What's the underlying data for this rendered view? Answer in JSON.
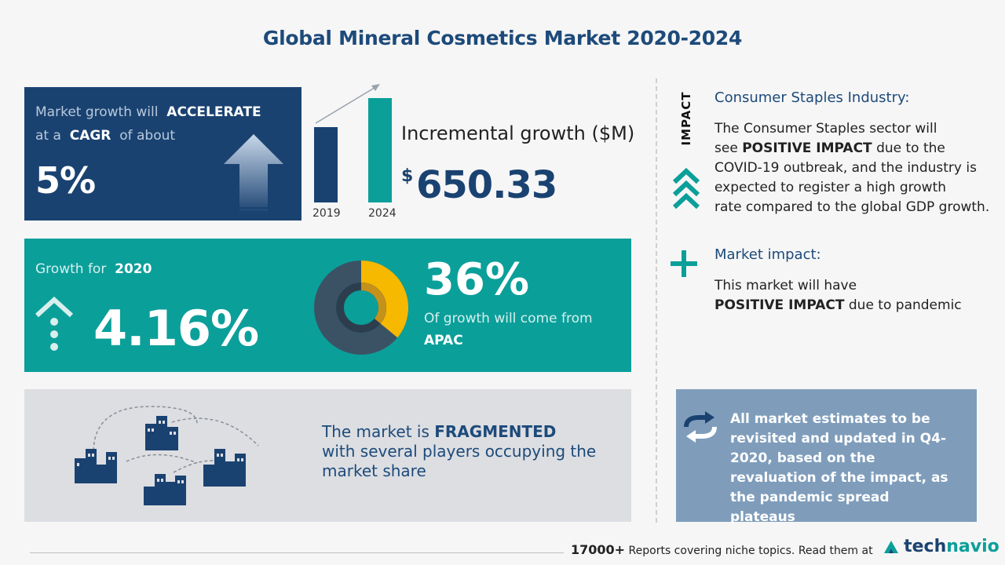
{
  "title": "Global Mineral Cosmetics Market 2020-2024",
  "cagr": {
    "line1_prefix": "Market growth will",
    "line1_emphasis": "ACCELERATE",
    "line2_prefix": "at a",
    "line2_emphasis": "CAGR",
    "line2_suffix": "of about",
    "value": "5%",
    "icon": "up-arrow-icon"
  },
  "incremental": {
    "label": "Incremental growth ($M)",
    "currency": "$",
    "value": "650.33",
    "years": [
      "2019",
      "2024"
    ],
    "bar_colors": [
      "#1a4271",
      "#0b9f9a"
    ]
  },
  "growth": {
    "label_prefix": "Growth for",
    "year": "2020",
    "value": "4.16%",
    "icon": "dotted-up-arrow-icon"
  },
  "region": {
    "percent": "36%",
    "text": "Of growth will come from",
    "name": "APAC",
    "share": 0.36,
    "highlight_color": "#f7b800"
  },
  "fragmented": {
    "prefix": "The market is",
    "emphasis": "FRAGMENTED",
    "line2": "with several players occupying the",
    "line3": "market share",
    "icon": "buildings-network-icon"
  },
  "impact": {
    "vertical_label": "IMPACT",
    "industry_title": "Consumer Staples Industry:",
    "industry_line1": "The Consumer Staples sector will",
    "industry_line2_prefix": "see",
    "industry_line2_emphasis": "POSITIVE IMPACT",
    "industry_line2_suffix": "due to the",
    "industry_line3": "COVID-19 outbreak, and the industry is",
    "industry_line4": "expected to register a high growth",
    "industry_line5": "rate compared to the global GDP growth.",
    "market_title": "Market impact:",
    "market_line1": "This market will have",
    "market_emphasis": "POSITIVE IMPACT",
    "market_suffix": "due to pandemic",
    "chevron_icon": "chevrons-up-icon",
    "plus_icon": "plus-icon"
  },
  "note": {
    "icon": "refresh-arrows-icon",
    "text": "All market estimates to be revisited and updated in Q4-2020, based on the revaluation of the impact, as the pandemic spread plateaus"
  },
  "footer": {
    "count": "17000+",
    "text": "Reports covering niche topics. Read them at",
    "brand_part1": "tech",
    "brand_part2": "navio"
  },
  "colors": {
    "navy": "#1a4271",
    "teal": "#0b9f9a",
    "slate": "#7f9dbb",
    "grey_panel": "#dcdee2"
  }
}
